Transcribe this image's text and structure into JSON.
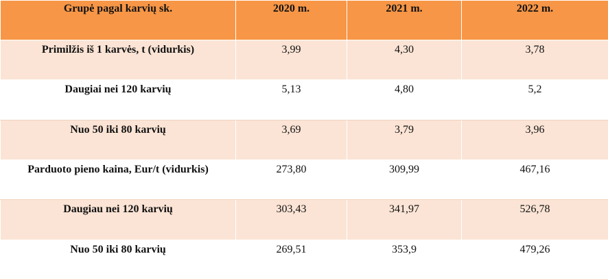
{
  "table": {
    "header": [
      "Grupė pagal karvių sk.",
      "2020 m.",
      "2021 m.",
      "2022 m."
    ],
    "rows": [
      [
        "Primilžis iš 1 karvės, t (vidurkis)",
        "3,99",
        "4,30",
        "3,78"
      ],
      [
        "Daugiai nei 120 karvių",
        "5,13",
        "4,80",
        "5,2"
      ],
      [
        "Nuo 50 iki 80 karvių",
        "3,69",
        "3,79",
        "3,96"
      ],
      [
        "Parduoto pieno kaina, Eur/t (vidurkis)",
        "273,80",
        "309,99",
        "467,16"
      ],
      [
        "Daugiau nei 120 karvių",
        "303,43",
        "341,97",
        "526,78"
      ],
      [
        "Nuo 50 iki 80 karvių",
        "269,51",
        "353,9",
        "479,26"
      ]
    ]
  }
}
